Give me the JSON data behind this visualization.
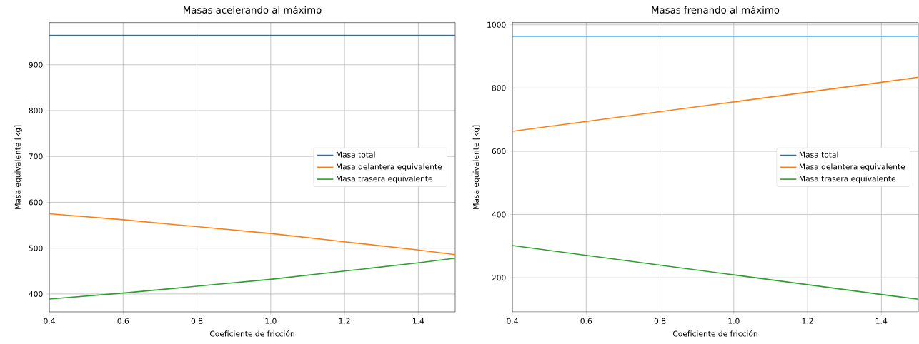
{
  "chart_data": [
    {
      "type": "line",
      "title": "Masas acelerando al máximo",
      "xlabel": "Coeficiente de fricción",
      "ylabel": "Masa equivalente [kg]",
      "x": [
        0.4,
        0.6,
        0.8,
        1.0,
        1.2,
        1.4,
        1.5
      ],
      "series": [
        {
          "name": "Masa total",
          "color": "#1f77b4",
          "values": [
            964,
            964,
            964,
            964,
            964,
            964,
            964
          ]
        },
        {
          "name": "Masa delantera equivalente",
          "color": "#ff7f0e",
          "values": [
            575,
            562,
            547,
            532,
            514,
            496,
            486
          ]
        },
        {
          "name": "Masa trasera equivalente",
          "color": "#2ca02c",
          "values": [
            389,
            402,
            417,
            432,
            450,
            468,
            478
          ]
        }
      ],
      "xlim": [
        0.4,
        1.5
      ],
      "ylim": [
        361,
        992
      ],
      "xticks": [
        0.4,
        0.6,
        0.8,
        {
          "value": 1,
          "label": "1.0"
        },
        1.2,
        1.4
      ],
      "yticks": [
        400,
        500,
        600,
        700,
        800,
        900
      ],
      "grid": true,
      "legend": "right"
    },
    {
      "type": "line",
      "title": "Masas frenando al máximo",
      "xlabel": "Coeficiente de fricción",
      "ylabel": "Masa equivalente [kg]",
      "x": [
        0.4,
        0.6,
        0.8,
        1.0,
        1.2,
        1.4,
        1.5
      ],
      "series": [
        {
          "name": "Masa total",
          "color": "#1f77b4",
          "values": [
            964,
            964,
            964,
            964,
            964,
            964,
            964
          ]
        },
        {
          "name": "Masa delantera equivalente",
          "color": "#ff7f0e",
          "values": [
            663,
            694,
            725,
            756,
            787,
            818,
            834
          ]
        },
        {
          "name": "Masa trasera equivalente",
          "color": "#2ca02c",
          "values": [
            302,
            271,
            240,
            209,
            178,
            147,
            132
          ]
        }
      ],
      "xlim": [
        0.4,
        1.5
      ],
      "ylim": [
        92,
        1007
      ],
      "xticks": [
        0.4,
        0.6,
        0.8,
        {
          "value": 1,
          "label": "1.0"
        },
        1.2,
        1.4
      ],
      "yticks": [
        200,
        400,
        600,
        800,
        1000
      ],
      "grid": true,
      "legend": "right"
    }
  ]
}
